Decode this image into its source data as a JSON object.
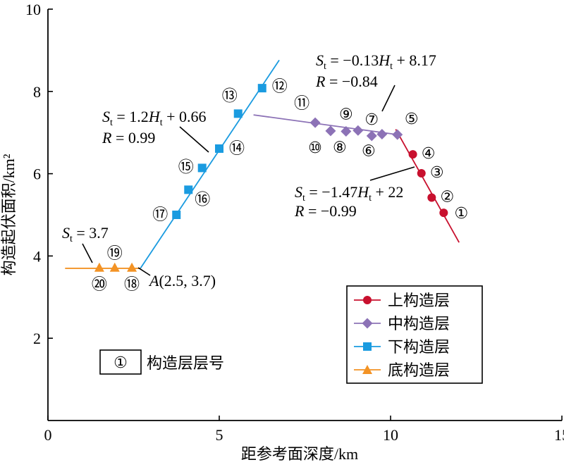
{
  "chart_data": {
    "type": "scatter",
    "xlabel": "距参考面深度/km",
    "ylabel": "构造起伏面积/km²",
    "xlim": [
      0,
      15
    ],
    "ylim": [
      0,
      10
    ],
    "x_ticks": [
      "0",
      "5",
      "10",
      "15"
    ],
    "y_ticks": [
      "2",
      "4",
      "6",
      "8",
      "10"
    ],
    "x_tick_values": [
      0,
      5,
      10,
      15
    ],
    "y_tick_values": [
      2,
      4,
      6,
      8,
      10
    ],
    "grid": false,
    "legend_position": "bottom-right",
    "series": [
      {
        "name": "上构造层",
        "color": "#c8102e",
        "marker": "circle",
        "points": [
          {
            "x": 11.55,
            "y": 5.05,
            "label": "①"
          },
          {
            "x": 11.2,
            "y": 5.42,
            "label": "②"
          },
          {
            "x": 10.9,
            "y": 6.01,
            "label": "③"
          },
          {
            "x": 10.65,
            "y": 6.47,
            "label": "④"
          }
        ],
        "fit": {
          "x1": 10.15,
          "y1": 7.08,
          "x2": 12.0,
          "y2": 4.33
        }
      },
      {
        "name": "中构造层",
        "color": "#8c72b6",
        "marker": "diamond",
        "points": [
          {
            "x": 10.2,
            "y": 6.95,
            "label": "⑤"
          },
          {
            "x": 9.75,
            "y": 6.96,
            "label": "⑥"
          },
          {
            "x": 9.45,
            "y": 6.92,
            "label": "⑦"
          },
          {
            "x": 9.05,
            "y": 7.05,
            "label": "⑧"
          },
          {
            "x": 8.7,
            "y": 7.03,
            "label": "⑨"
          },
          {
            "x": 8.25,
            "y": 7.04,
            "label": "⑩"
          },
          {
            "x": 7.8,
            "y": 7.24,
            "label": "⑪"
          }
        ],
        "fit": {
          "x1": 6.0,
          "y1": 7.43,
          "x2": 10.2,
          "y2": 6.95
        }
      },
      {
        "name": "下构造层",
        "color": "#1a9be0",
        "marker": "square",
        "points": [
          {
            "x": 6.25,
            "y": 8.08,
            "label": "⑫"
          },
          {
            "x": 5.55,
            "y": 7.46,
            "label": "⑬"
          },
          {
            "x": 5.0,
            "y": 6.61,
            "label": "⑭"
          },
          {
            "x": 4.5,
            "y": 6.14,
            "label": "⑮"
          },
          {
            "x": 4.1,
            "y": 5.61,
            "label": "⑯"
          },
          {
            "x": 3.75,
            "y": 5.0,
            "label": "⑰"
          }
        ],
        "fit": {
          "x1": 2.7,
          "y1": 3.7,
          "x2": 6.75,
          "y2": 8.76
        }
      },
      {
        "name": "底构造层",
        "color": "#f39325",
        "marker": "triangle",
        "points": [
          {
            "x": 2.45,
            "y": 3.72,
            "label": "⑱"
          },
          {
            "x": 1.95,
            "y": 3.72,
            "label": "⑲"
          },
          {
            "x": 1.5,
            "y": 3.72,
            "label": "⑳"
          }
        ],
        "fit": {
          "x1": 0.5,
          "y1": 3.7,
          "x2": 2.7,
          "y2": 3.7
        }
      }
    ],
    "annotations": {
      "upper_eq": {
        "S": "S",
        "sub": "t",
        "rest": " = −0.13",
        "H": "H",
        "hsub": "t",
        "tail": " + 8.17"
      },
      "upper_r": {
        "R": "R",
        "rest": " = −0.84"
      },
      "mid_eq": {
        "S": "S",
        "sub": "t",
        "rest": " = 1.2",
        "H": "H",
        "hsub": "t",
        "tail": " + 0.66"
      },
      "mid_r": {
        "R": "R",
        "rest": " = 0.99"
      },
      "low_eq": {
        "S": "S",
        "sub": "t",
        "rest": " = −1.47",
        "H": "H",
        "hsub": "t",
        "tail": " + 22"
      },
      "low_r": {
        "R": "R",
        "rest": " = −0.99"
      },
      "base_eq": {
        "S": "S",
        "sub": "t",
        "rest": " = 3.7"
      },
      "point_a": {
        "A": "A",
        "rest": "(2.5, 3.7)"
      },
      "key_symbol": "①",
      "key_text": "构造层层号"
    }
  }
}
